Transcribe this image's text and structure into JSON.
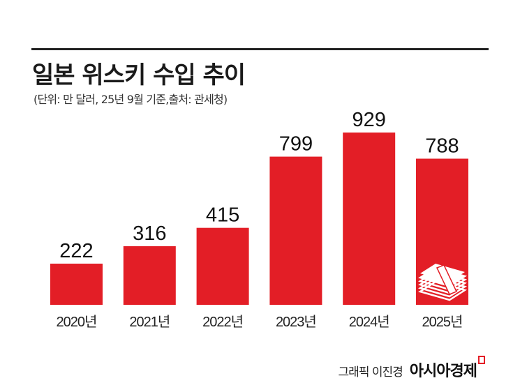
{
  "chart_data": {
    "type": "bar",
    "title": "일본 위스키 수입 추이",
    "subtitle": "(단위: 만 달러, 25년 9월 기준,출처: 관세청)",
    "categories": [
      "2020년",
      "2021년",
      "2022년",
      "2023년",
      "2024년",
      "2025년"
    ],
    "values": [
      222,
      316,
      415,
      799,
      929,
      788
    ],
    "ylim": [
      0,
      929
    ],
    "grid": false,
    "bar_color": "#e31e26",
    "icon": "money-stack-icon"
  },
  "footer": {
    "credit": "그래픽 이진경",
    "brand": "아시아경제"
  }
}
